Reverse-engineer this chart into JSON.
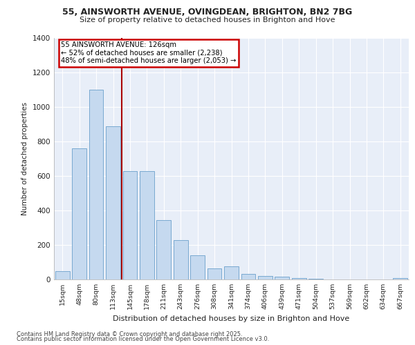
{
  "title1": "55, AINSWORTH AVENUE, OVINGDEAN, BRIGHTON, BN2 7BG",
  "title2": "Size of property relative to detached houses in Brighton and Hove",
  "xlabel": "Distribution of detached houses by size in Brighton and Hove",
  "ylabel": "Number of detached properties",
  "categories": [
    "15sqm",
    "48sqm",
    "80sqm",
    "113sqm",
    "145sqm",
    "178sqm",
    "211sqm",
    "243sqm",
    "276sqm",
    "308sqm",
    "341sqm",
    "374sqm",
    "406sqm",
    "439sqm",
    "471sqm",
    "504sqm",
    "537sqm",
    "569sqm",
    "602sqm",
    "634sqm",
    "667sqm"
  ],
  "values": [
    48,
    760,
    1100,
    890,
    630,
    630,
    345,
    230,
    140,
    65,
    75,
    32,
    22,
    17,
    10,
    5,
    2,
    2,
    0,
    2,
    10
  ],
  "bar_color": "#c5d9ef",
  "bar_edge_color": "#6a9fcb",
  "vline_x": 3.5,
  "vline_color": "#aa0000",
  "annotation_text": "55 AINSWORTH AVENUE: 126sqm\n← 52% of detached houses are smaller (2,238)\n48% of semi-detached houses are larger (2,053) →",
  "annotation_box_facecolor": "#ffffff",
  "annotation_box_edgecolor": "#cc0000",
  "background_color": "#e8eef8",
  "grid_color": "#ffffff",
  "ylim": [
    0,
    1400
  ],
  "yticks": [
    0,
    200,
    400,
    600,
    800,
    1000,
    1200,
    1400
  ],
  "footer1": "Contains HM Land Registry data © Crown copyright and database right 2025.",
  "footer2": "Contains public sector information licensed under the Open Government Licence v3.0."
}
